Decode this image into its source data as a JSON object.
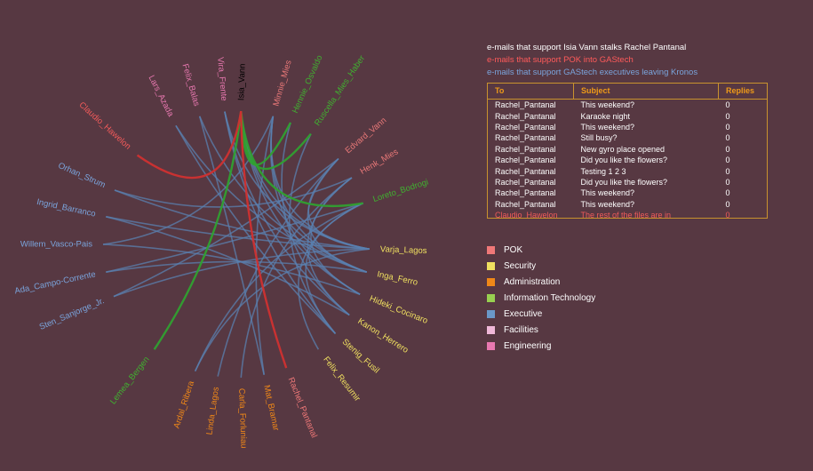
{
  "legend_lines": [
    {
      "text": "e-mails that support Isia Vann stalks Rachel Pantanal",
      "color": "#ffffff"
    },
    {
      "text": "e-mails that support POK into GAStech",
      "color": "#ff5a5a"
    },
    {
      "text": "e-mails that support GAStech executives leaving Kronos",
      "color": "#7aa4dc"
    }
  ],
  "table": {
    "headers": [
      "To",
      "Subject",
      "Replies"
    ],
    "rows": [
      {
        "to": "Rachel_Pantanal",
        "subject": "This weekend?",
        "replies": "0"
      },
      {
        "to": "Rachel_Pantanal",
        "subject": "Karaoke night",
        "replies": "0"
      },
      {
        "to": "Rachel_Pantanal",
        "subject": "This weekend?",
        "replies": "0"
      },
      {
        "to": "Rachel_Pantanal",
        "subject": "Still busy?",
        "replies": "0"
      },
      {
        "to": "Rachel_Pantanal",
        "subject": "New gyro place opened",
        "replies": "0"
      },
      {
        "to": "Rachel_Pantanal",
        "subject": "Did you like the flowers?",
        "replies": "0"
      },
      {
        "to": "Rachel_Pantanal",
        "subject": "Testing 1 2 3",
        "replies": "0"
      },
      {
        "to": "Rachel_Pantanal",
        "subject": "Did you like the flowers?",
        "replies": "0"
      },
      {
        "to": "Rachel_Pantanal",
        "subject": "This weekend?",
        "replies": "0"
      },
      {
        "to": "Rachel_Pantanal",
        "subject": "This weekend?",
        "replies": "0"
      },
      {
        "to": "Claudio_Hawelon",
        "subject": "The rest of the files are in",
        "replies": "0",
        "alert": true
      }
    ]
  },
  "departments": [
    {
      "name": "POK",
      "color": "#f07878"
    },
    {
      "name": "Security",
      "color": "#f0e060"
    },
    {
      "name": "Administration",
      "color": "#f08818"
    },
    {
      "name": "Information Technology",
      "color": "#98d050"
    },
    {
      "name": "Executive",
      "color": "#6a98c8"
    },
    {
      "name": "Facilities",
      "color": "#f0b8d8"
    },
    {
      "name": "Engineering",
      "color": "#e878b0"
    }
  ],
  "nodes": [
    {
      "name": "Isia_Vann",
      "dept": "Facilities",
      "color": "#000000",
      "angle": -88
    },
    {
      "name": "Minnie_Mies",
      "dept": "Information Technology",
      "color": "#e87878",
      "angle": -74
    },
    {
      "name": "Hennie_Osvaldo",
      "dept": "Information Technology",
      "color": "#40b030",
      "angle": -66
    },
    {
      "name": "Ruscella_Mies_Haber",
      "dept": "Information Technology",
      "color": "#40b030",
      "angle": -56
    },
    {
      "name": "Edvard_Vann",
      "dept": "Information Technology",
      "color": "#e87878",
      "angle": -40
    },
    {
      "name": "Henk_Mies",
      "dept": "Information Technology",
      "color": "#e87878",
      "angle": -30
    },
    {
      "name": "Loreto_Bodrogi",
      "dept": "Information Technology",
      "color": "#40b030",
      "angle": -18
    },
    {
      "name": "Varja_Lagos",
      "dept": "Security",
      "color": "#f0e060",
      "angle": 2
    },
    {
      "name": "Inga_Ferro",
      "dept": "Security",
      "color": "#f0e060",
      "angle": 12
    },
    {
      "name": "Hideki_Cocinaro",
      "dept": "Security",
      "color": "#f0e060",
      "angle": 22
    },
    {
      "name": "Kanon_Herrero",
      "dept": "Security",
      "color": "#f0e060",
      "angle": 32
    },
    {
      "name": "Stenig_Fusil",
      "dept": "Security",
      "color": "#f0e060",
      "angle": 42
    },
    {
      "name": "Felix_Resumir",
      "dept": "Security",
      "color": "#f0e060",
      "angle": 52
    },
    {
      "name": "Rachel_Pantanal",
      "dept": "Administration",
      "color": "#f07878",
      "angle": 68
    },
    {
      "name": "Mat_Bramar",
      "dept": "Administration",
      "color": "#f08818",
      "angle": 78
    },
    {
      "name": "Carla_Forluniau",
      "dept": "Administration",
      "color": "#f08818",
      "angle": 88
    },
    {
      "name": "Linda_Lagos",
      "dept": "Administration",
      "color": "#f08818",
      "angle": 98
    },
    {
      "name": "Ardal_Ribera",
      "dept": "Administration",
      "color": "#f08818",
      "angle": 108
    },
    {
      "name": "Lemea_Bergen",
      "dept": "Executive",
      "color": "#40b030",
      "angle": 128
    },
    {
      "name": "Sten_Sanjorge_Jr.",
      "dept": "Executive",
      "color": "#7aa4dc",
      "angle": 157
    },
    {
      "name": "Ada_Campo-Corrente",
      "dept": "Executive",
      "color": "#7aa4dc",
      "angle": 168
    },
    {
      "name": "Willem_Vasco-Pais",
      "dept": "Executive",
      "color": "#7aa4dc",
      "angle": 180
    },
    {
      "name": "Ingrid_Barranco",
      "dept": "Executive",
      "color": "#7aa4dc",
      "angle": 192
    },
    {
      "name": "Orhan_Strum",
      "dept": "Executive",
      "color": "#7aa4dc",
      "angle": 204
    },
    {
      "name": "Claudio_Hawelon",
      "dept": "Executive",
      "color": "#f05a5a",
      "angle": 222
    },
    {
      "name": "Lars_Azada",
      "dept": "Engineering",
      "color": "#e878b0",
      "angle": 243
    },
    {
      "name": "Felix_Balas",
      "dept": "Engineering",
      "color": "#e878b0",
      "angle": 254
    },
    {
      "name": "Vira_Frente",
      "dept": "Engineering",
      "color": "#e878b0",
      "angle": 265
    }
  ],
  "links": [
    {
      "source": "Isia_Vann",
      "target": "Rachel_Pantanal",
      "group": "pok"
    },
    {
      "source": "Claudio_Hawelon",
      "target": "Isia_Vann",
      "group": "pok"
    },
    {
      "source": "Isia_Vann",
      "target": "Lemea_Bergen",
      "group": "stalk"
    },
    {
      "source": "Isia_Vann",
      "target": "Hennie_Osvaldo",
      "group": "stalk"
    },
    {
      "source": "Isia_Vann",
      "target": "Ruscella_Mies_Haber",
      "group": "stalk"
    },
    {
      "source": "Isia_Vann",
      "target": "Loreto_Bodrogi",
      "group": "stalk"
    },
    {
      "source": "Minnie_Mies",
      "target": "Varja_Lagos",
      "group": "exec"
    },
    {
      "source": "Minnie_Mies",
      "target": "Inga_Ferro",
      "group": "exec"
    },
    {
      "source": "Minnie_Mies",
      "target": "Hideki_Cocinaro",
      "group": "exec"
    },
    {
      "source": "Hennie_Osvaldo",
      "target": "Kanon_Herrero",
      "group": "exec"
    },
    {
      "source": "Ruscella_Mies_Haber",
      "target": "Stenig_Fusil",
      "group": "exec"
    },
    {
      "source": "Edvard_Vann",
      "target": "Varja_Lagos",
      "group": "exec"
    },
    {
      "source": "Edvard_Vann",
      "target": "Inga_Ferro",
      "group": "exec"
    },
    {
      "source": "Henk_Mies",
      "target": "Hideki_Cocinaro",
      "group": "exec"
    },
    {
      "source": "Henk_Mies",
      "target": "Kanon_Herrero",
      "group": "exec"
    },
    {
      "source": "Loreto_Bodrogi",
      "target": "Stenig_Fusil",
      "group": "exec"
    },
    {
      "source": "Loreto_Bodrogi",
      "target": "Felix_Resumir",
      "group": "exec"
    },
    {
      "source": "Isia_Vann",
      "target": "Varja_Lagos",
      "group": "exec"
    },
    {
      "source": "Isia_Vann",
      "target": "Inga_Ferro",
      "group": "exec"
    },
    {
      "source": "Isia_Vann",
      "target": "Hideki_Cocinaro",
      "group": "exec"
    },
    {
      "source": "Vira_Frente",
      "target": "Varja_Lagos",
      "group": "exec"
    },
    {
      "source": "Vira_Frente",
      "target": "Kanon_Herrero",
      "group": "exec"
    },
    {
      "source": "Felix_Balas",
      "target": "Inga_Ferro",
      "group": "exec"
    },
    {
      "source": "Felix_Balas",
      "target": "Mat_Bramar",
      "group": "exec"
    },
    {
      "source": "Lars_Azada",
      "target": "Stenig_Fusil",
      "group": "exec"
    },
    {
      "source": "Sten_Sanjorge_Jr.",
      "target": "Varja_Lagos",
      "group": "exec"
    },
    {
      "source": "Ada_Campo-Corrente",
      "target": "Inga_Ferro",
      "group": "exec"
    },
    {
      "source": "Willem_Vasco-Pais",
      "target": "Hideki_Cocinaro",
      "group": "exec"
    },
    {
      "source": "Ingrid_Barranco",
      "target": "Kanon_Herrero",
      "group": "exec"
    },
    {
      "source": "Orhan_Strum",
      "target": "Varja_Lagos",
      "group": "exec"
    },
    {
      "source": "Mat_Bramar",
      "target": "Minnie_Mies",
      "group": "exec"
    },
    {
      "source": "Carla_Forluniau",
      "target": "Henk_Mies",
      "group": "exec"
    },
    {
      "source": "Linda_Lagos",
      "target": "Edvard_Vann",
      "group": "exec"
    },
    {
      "source": "Ardal_Ribera",
      "target": "Loreto_Bodrogi",
      "group": "exec"
    },
    {
      "source": "Ardal_Ribera",
      "target": "Varja_Lagos",
      "group": "exec"
    },
    {
      "source": "Sten_Sanjorge_Jr.",
      "target": "Edvard_Vann",
      "group": "exec"
    },
    {
      "source": "Willem_Vasco-Pais",
      "target": "Minnie_Mies",
      "group": "exec"
    },
    {
      "source": "Ada_Campo-Corrente",
      "target": "Loreto_Bodrogi",
      "group": "exec"
    },
    {
      "source": "Orhan_Strum",
      "target": "Henk_Mies",
      "group": "exec"
    },
    {
      "source": "Ingrid_Barranco",
      "target": "Varja_Lagos",
      "group": "exec"
    },
    {
      "source": "Lars_Azada",
      "target": "Inga_Ferro",
      "group": "exec"
    },
    {
      "source": "Vira_Frente",
      "target": "Stenig_Fusil",
      "group": "exec"
    }
  ],
  "link_colors": {
    "exec": "#5a80b0",
    "pok": "#d03030",
    "stalk": "#30a030"
  }
}
